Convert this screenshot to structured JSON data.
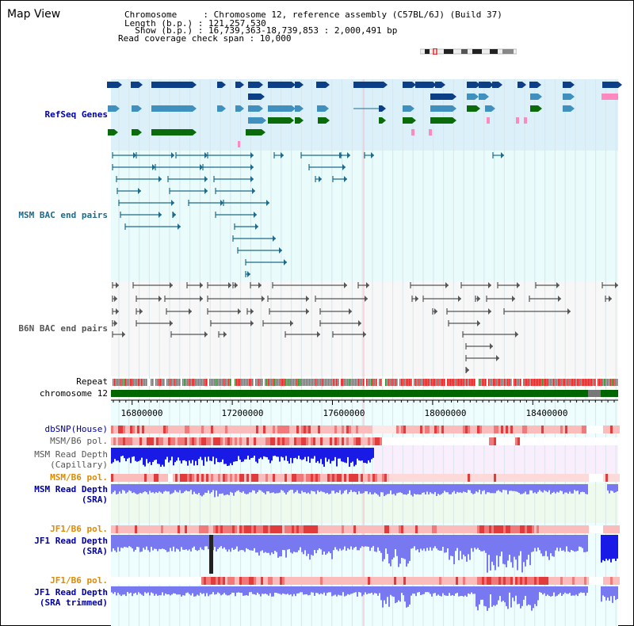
{
  "window": {
    "title": "Map View"
  },
  "info": {
    "chromosome_line": "Chromosome     : Chromosome 12, reference assembly (C57BL/6J) (Build 37)",
    "length_line": "Length (b.p.) : 121,257,530",
    "show_line": "  Show (b.p.) : 16,739,363-18,739,853 : 2,000,491 bp",
    "read_coverage_line": "Read coverage check span : 10,000"
  },
  "tracks": {
    "refseq": {
      "label": "RefSeq Genes",
      "color": "#0d3f87"
    },
    "msm_bac": {
      "label": "MSM BAC end pairs",
      "color": "#1f6a8a"
    },
    "b6n_bac": {
      "label": "B6N BAC end pairs",
      "color": "#555555"
    },
    "repeat": {
      "label": "Repeat"
    },
    "chromosome": {
      "label": "chromosome 12",
      "color": "#006600"
    },
    "dbsnp": {
      "label": "dbSNP(House)"
    },
    "msm_b6_pol_1": {
      "label": "MSM/B6 pol."
    },
    "msm_depth_cap": {
      "label_1": "MSM Read Depth",
      "label_2": "(Capillary)"
    },
    "msm_b6_pol_2": {
      "label": "MSM/B6 pol.",
      "color": "#e08a00"
    },
    "msm_depth_sra": {
      "label_1": "MSM Read Depth",
      "label_2": "(SRA)"
    },
    "jf1_b6_pol_1": {
      "label": "JF1/B6 pol.",
      "color": "#e08a00"
    },
    "jf1_depth_sra": {
      "label_1": "JF1 Read Depth",
      "label_2": "(SRA)"
    },
    "jf1_b6_pol_2": {
      "label": "JF1/B6 pol.",
      "color": "#e08a00"
    },
    "jf1_depth_trim": {
      "label_1": "JF1 Read Depth",
      "label_2": "(SRA trimmed)"
    }
  },
  "axis": {
    "ticks": [
      "16800000",
      "17200000",
      "17600000",
      "18000000",
      "18400000"
    ]
  },
  "colors": {
    "refseq_bg": "#dcf0fa",
    "bac_bg": "#e9fbfb",
    "b6n_bg": "#f7f7f7",
    "label_blue": "#0000a0",
    "label_teal": "#1f6a8a",
    "label_orange": "#e08a00",
    "snp_red": "#e23b3b",
    "depth_blue": "#1a1ae6",
    "depth_light": "#7878f0"
  }
}
